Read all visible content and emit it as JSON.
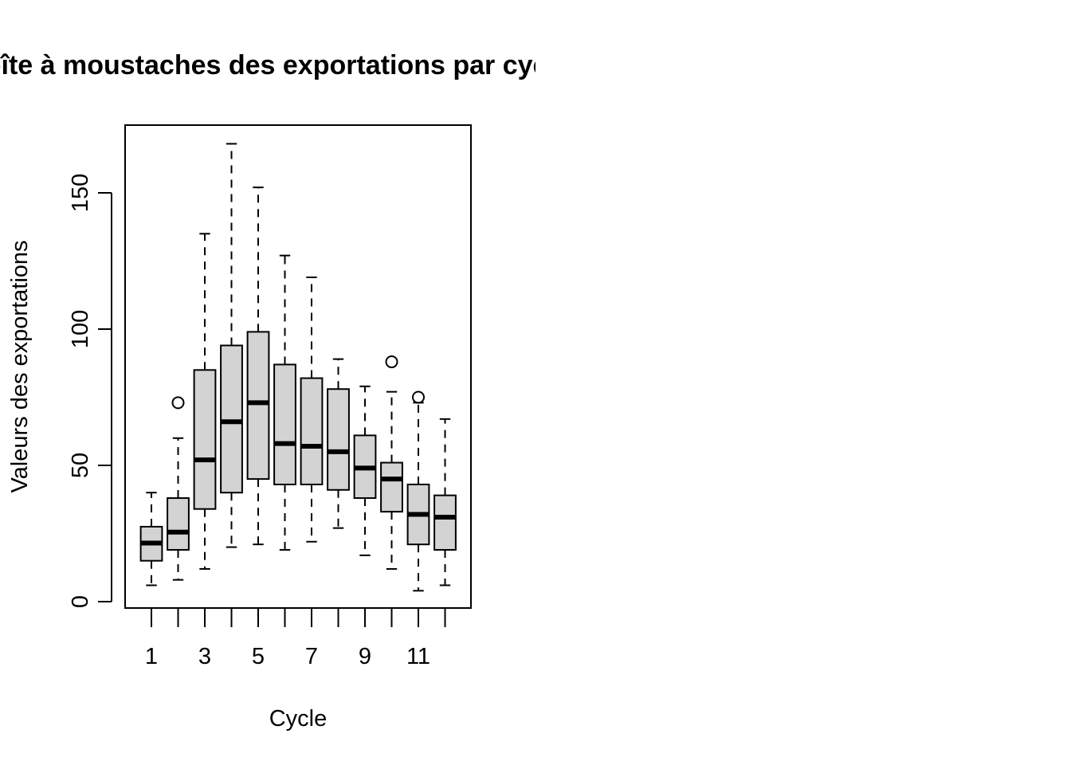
{
  "chart_data": {
    "type": "box",
    "title": "Boîte à moustaches des exportations par cycle",
    "xlabel": "Cycle",
    "ylabel": "Valeurs des exportations",
    "ylim": [
      -2,
      175
    ],
    "y_ticks": [
      0,
      50,
      100,
      150
    ],
    "x_tick_labels": [
      "1",
      "3",
      "5",
      "7",
      "9",
      "11"
    ],
    "categories": [
      "1",
      "2",
      "3",
      "4",
      "5",
      "6",
      "7",
      "8",
      "9",
      "10",
      "11",
      "12"
    ],
    "boxes": [
      {
        "category": "1",
        "whisker_low": 6,
        "q1": 15,
        "median": 21.5,
        "q3": 27.5,
        "whisker_high": 40,
        "outliers": []
      },
      {
        "category": "2",
        "whisker_low": 8,
        "q1": 19,
        "median": 25.5,
        "q3": 38,
        "whisker_high": 60,
        "outliers": [
          73
        ]
      },
      {
        "category": "3",
        "whisker_low": 12,
        "q1": 34,
        "median": 52,
        "q3": 85,
        "whisker_high": 135,
        "outliers": []
      },
      {
        "category": "4",
        "whisker_low": 20,
        "q1": 40,
        "median": 66,
        "q3": 94,
        "whisker_high": 168,
        "outliers": []
      },
      {
        "category": "5",
        "whisker_low": 21,
        "q1": 45,
        "median": 73,
        "q3": 99,
        "whisker_high": 152,
        "outliers": []
      },
      {
        "category": "6",
        "whisker_low": 19,
        "q1": 43,
        "median": 58,
        "q3": 87,
        "whisker_high": 127,
        "outliers": []
      },
      {
        "category": "7",
        "whisker_low": 22,
        "q1": 43,
        "median": 57,
        "q3": 82,
        "whisker_high": 119,
        "outliers": []
      },
      {
        "category": "8",
        "whisker_low": 27,
        "q1": 41,
        "median": 55,
        "q3": 78,
        "whisker_high": 89,
        "outliers": []
      },
      {
        "category": "9",
        "whisker_low": 17,
        "q1": 38,
        "median": 49,
        "q3": 61,
        "whisker_high": 79,
        "outliers": []
      },
      {
        "category": "10",
        "whisker_low": 12,
        "q1": 33,
        "median": 45,
        "q3": 51,
        "whisker_high": 77,
        "outliers": [
          88
        ]
      },
      {
        "category": "11",
        "whisker_low": 4,
        "q1": 21,
        "median": 32,
        "q3": 43,
        "whisker_high": 73,
        "outliers": [
          75
        ]
      },
      {
        "category": "12",
        "whisker_low": 6,
        "q1": 19,
        "median": 31,
        "q3": 39,
        "whisker_high": 67,
        "outliers": []
      }
    ],
    "box_fill": "#d3d3d3",
    "grid": false,
    "legend": "none"
  }
}
